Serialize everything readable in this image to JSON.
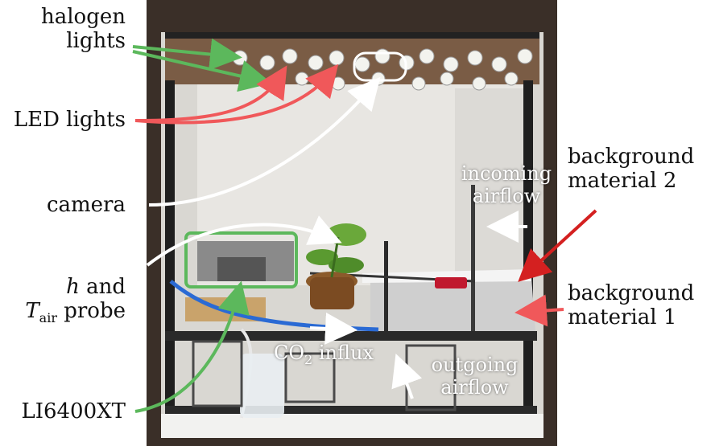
{
  "labels": {
    "halogen_line1": "halogen",
    "halogen_line2": "lights",
    "led": "LED lights",
    "camera": "camera",
    "probe_h": "h",
    "probe_and": "and",
    "probe_T": "T",
    "probe_sub": "air",
    "probe_word": "probe",
    "li6400": "LI6400XT",
    "bg2_line1": "background",
    "bg2_line2": "material 2",
    "bg1_line1": "background",
    "bg1_line2": "material 1",
    "incoming_line1": "incoming",
    "incoming_line2": "airflow",
    "co2_pre": "CO",
    "co2_sub": "2",
    "co2_post": "influx",
    "outgoing_line1": "outgoing",
    "outgoing_line2": "airflow"
  },
  "colors": {
    "halogen_arrow": "#5cb85c",
    "led_arrow": "#f0585a",
    "camera_arrow": "#ffffff",
    "li_arrow": "#5cb85c",
    "bg2_arrow": "#d42020",
    "bg1_arrow": "#f0585a",
    "probe_box": "#5cb85c"
  }
}
